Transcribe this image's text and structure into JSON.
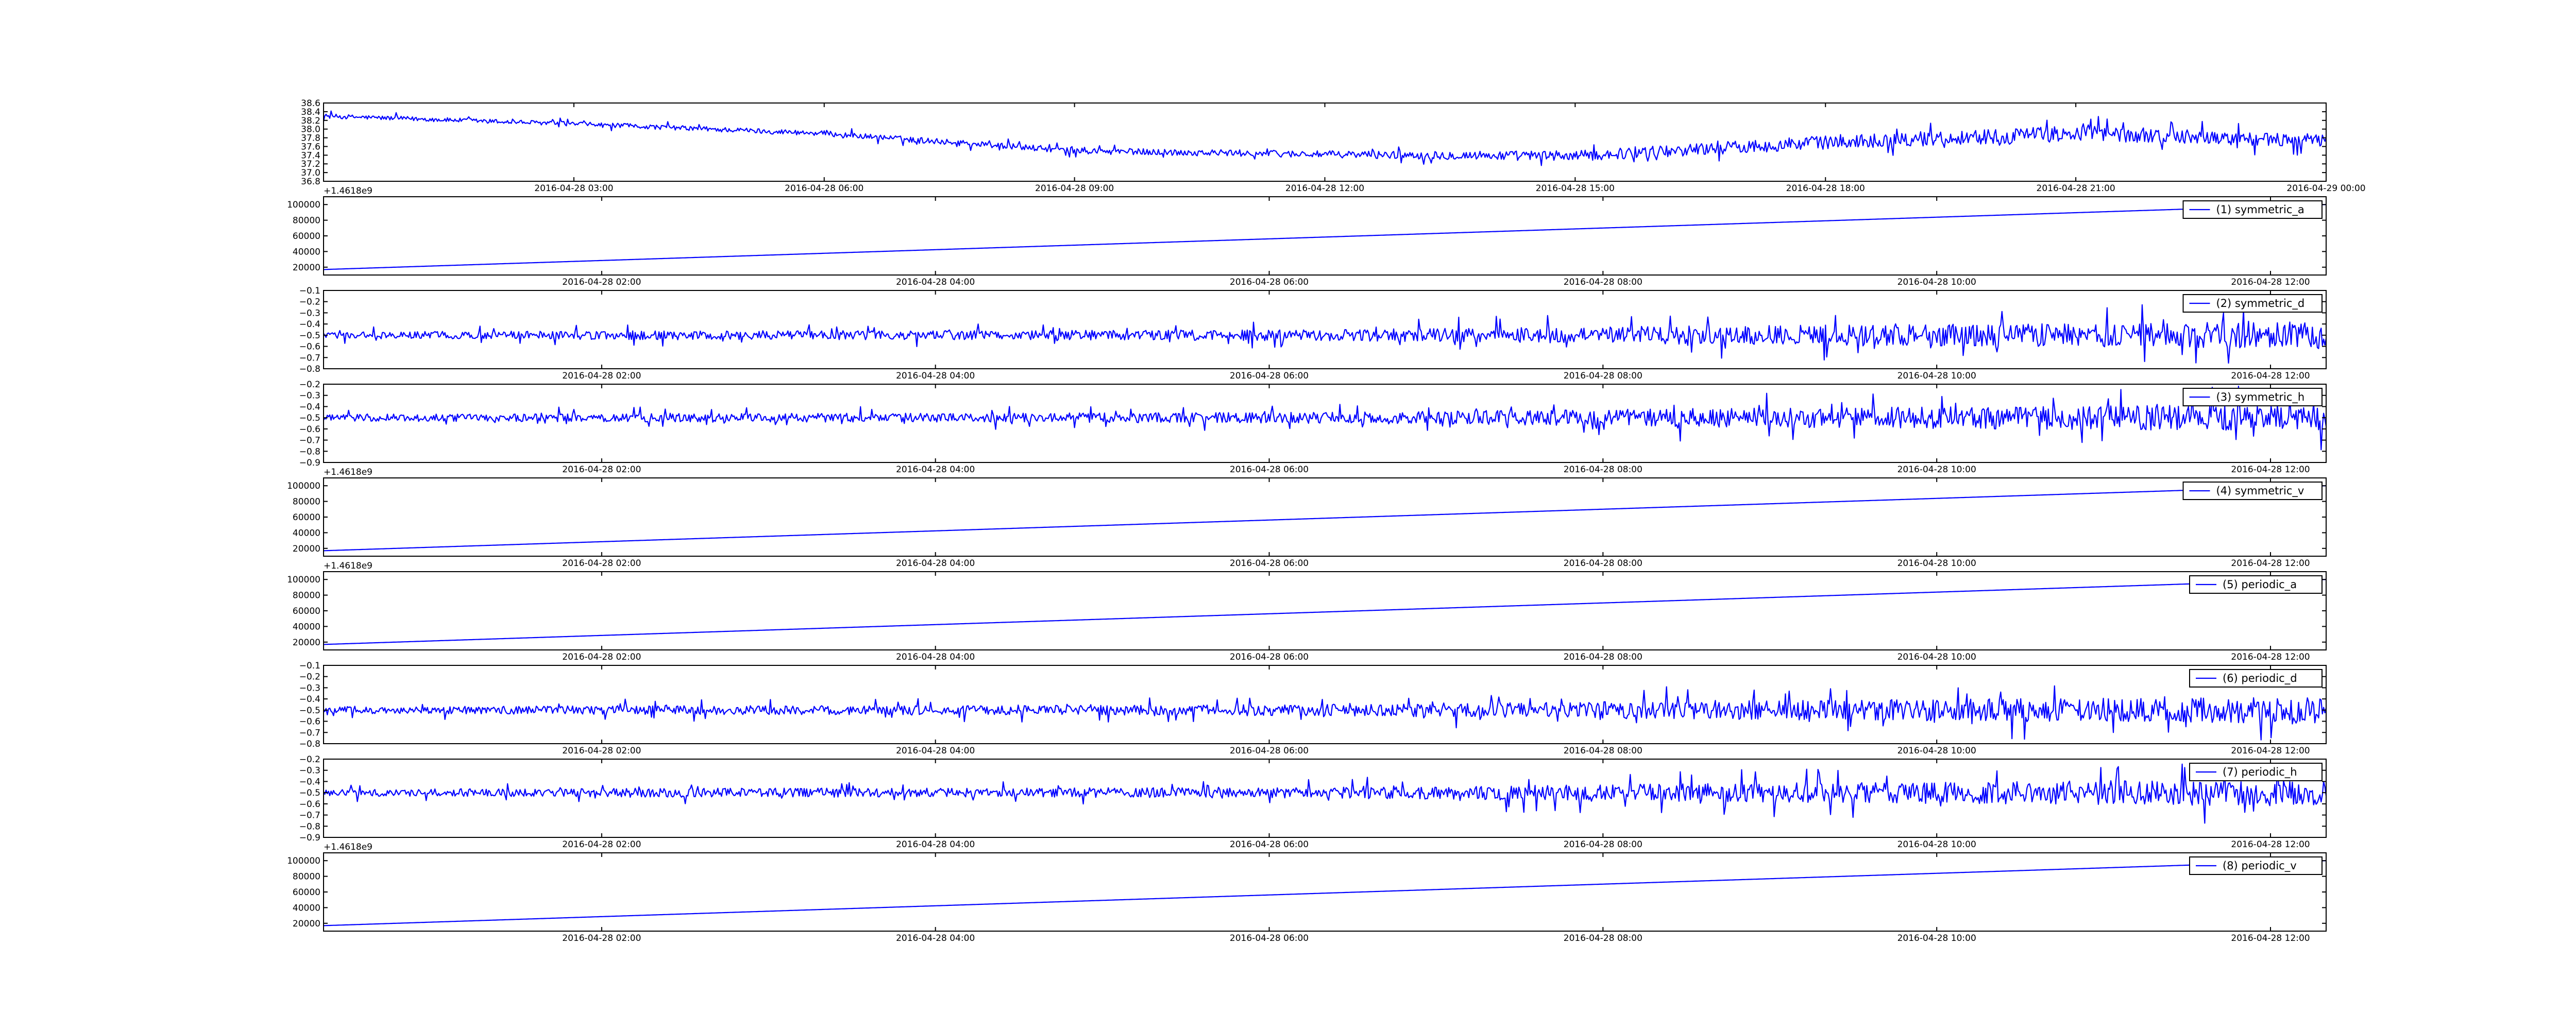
{
  "chart_data": [
    {
      "type": "line",
      "name": "",
      "x_axis_type": "datetime",
      "x_range": [
        "2016-04-28 00:00",
        "2016-04-29 00:00"
      ],
      "x_tick_labels": [
        "2016-04-28 03:00",
        "2016-04-28 06:00",
        "2016-04-28 09:00",
        "2016-04-28 12:00",
        "2016-04-28 15:00",
        "2016-04-28 18:00",
        "2016-04-28 21:00",
        "2016-04-29 00:00"
      ],
      "offset_label": "+1.4618e9",
      "ylim": [
        36.8,
        38.6
      ],
      "y_tick_labels": [
        "38.6",
        "38.4",
        "38.2",
        "38.0",
        "37.8",
        "37.6",
        "37.4",
        "37.2",
        "37.0",
        "36.8"
      ],
      "legend": "",
      "trend": {
        "x": [
          "2016-04-28 00:00",
          "2016-04-28 03:00",
          "2016-04-28 06:00",
          "2016-04-28 09:00",
          "2016-04-28 12:00",
          "2016-04-28 15:00",
          "2016-04-28 18:00",
          "2016-04-28 21:00",
          "2016-04-29 00:00"
        ],
        "y": [
          38.3,
          38.12,
          37.9,
          37.5,
          37.42,
          37.38,
          37.7,
          37.9,
          37.72
        ]
      },
      "noise_amplitude": [
        0.05,
        0.05,
        0.06,
        0.07,
        0.08,
        0.12,
        0.16,
        0.18,
        0.14
      ],
      "color": "#0000ff"
    },
    {
      "type": "line",
      "x_axis_type": "datetime",
      "x_range": [
        "2016-04-28 00:20",
        "2016-04-28 12:20"
      ],
      "x_tick_labels": [
        "2016-04-28 02:00",
        "2016-04-28 04:00",
        "2016-04-28 06:00",
        "2016-04-28 08:00",
        "2016-04-28 10:00",
        "2016-04-28 12:00"
      ],
      "offset_label": "",
      "ylim": [
        10000,
        110000
      ],
      "y_tick_labels": [
        "100000",
        "80000",
        "60000",
        "40000",
        "20000"
      ],
      "legend": "(1) symmetric_a",
      "trend": {
        "x": [
          "2016-04-28 00:20",
          "2016-04-28 12:20"
        ],
        "y": [
          17000,
          100000
        ]
      },
      "noise_amplitude": [
        0
      ],
      "color": "#0000ff"
    },
    {
      "type": "line",
      "x_axis_type": "datetime",
      "x_range": [
        "2016-04-28 00:20",
        "2016-04-28 12:20"
      ],
      "x_tick_labels": [
        "2016-04-28 02:00",
        "2016-04-28 04:00",
        "2016-04-28 06:00",
        "2016-04-28 08:00",
        "2016-04-28 10:00",
        "2016-04-28 12:00"
      ],
      "offset_label": "",
      "ylim": [
        -0.8,
        -0.1
      ],
      "y_tick_labels": [
        "−0.1",
        "−0.2",
        "−0.3",
        "−0.4",
        "−0.5",
        "−0.6",
        "−0.7",
        "−0.8"
      ],
      "legend": "(2) symmetric_d",
      "trend": {
        "x": [
          "2016-04-28 00:20",
          "2016-04-28 12:20"
        ],
        "y": [
          -0.5,
          -0.5
        ]
      },
      "noise_amplitude": [
        0.03,
        0.04,
        0.04,
        0.05,
        0.08,
        0.1,
        0.12
      ],
      "color": "#0000ff"
    },
    {
      "type": "line",
      "x_axis_type": "datetime",
      "x_range": [
        "2016-04-28 00:20",
        "2016-04-28 12:20"
      ],
      "x_tick_labels": [
        "2016-04-28 02:00",
        "2016-04-28 04:00",
        "2016-04-28 06:00",
        "2016-04-28 08:00",
        "2016-04-28 10:00",
        "2016-04-28 12:00"
      ],
      "offset_label": "+1.4618e9",
      "ylim": [
        -0.9,
        -0.2
      ],
      "y_tick_labels": [
        "−0.2",
        "−0.3",
        "−0.4",
        "−0.5",
        "−0.6",
        "−0.7",
        "−0.8",
        "−0.9"
      ],
      "legend": "(3) symmetric_h",
      "trend": {
        "x": [
          "2016-04-28 00:20",
          "2016-04-28 12:20"
        ],
        "y": [
          -0.5,
          -0.5
        ]
      },
      "noise_amplitude": [
        0.03,
        0.04,
        0.04,
        0.05,
        0.08,
        0.1,
        0.12
      ],
      "color": "#0000ff"
    },
    {
      "type": "line",
      "x_axis_type": "datetime",
      "x_range": [
        "2016-04-28 00:20",
        "2016-04-28 12:20"
      ],
      "x_tick_labels": [
        "2016-04-28 02:00",
        "2016-04-28 04:00",
        "2016-04-28 06:00",
        "2016-04-28 08:00",
        "2016-04-28 10:00",
        "2016-04-28 12:00"
      ],
      "offset_label": "+1.4618e9",
      "ylim": [
        10000,
        110000
      ],
      "y_tick_labels": [
        "100000",
        "80000",
        "60000",
        "40000",
        "20000"
      ],
      "legend": "(4) symmetric_v",
      "trend": {
        "x": [
          "2016-04-28 00:20",
          "2016-04-28 12:20"
        ],
        "y": [
          17000,
          100000
        ]
      },
      "noise_amplitude": [
        0
      ],
      "color": "#0000ff"
    },
    {
      "type": "line",
      "x_axis_type": "datetime",
      "x_range": [
        "2016-04-28 00:20",
        "2016-04-28 12:20"
      ],
      "x_tick_labels": [
        "2016-04-28 02:00",
        "2016-04-28 04:00",
        "2016-04-28 06:00",
        "2016-04-28 08:00",
        "2016-04-28 10:00",
        "2016-04-28 12:00"
      ],
      "offset_label": "",
      "ylim": [
        10000,
        110000
      ],
      "y_tick_labels": [
        "100000",
        "80000",
        "60000",
        "40000",
        "20000"
      ],
      "legend": "(5) periodic_a",
      "trend": {
        "x": [
          "2016-04-28 00:20",
          "2016-04-28 12:20"
        ],
        "y": [
          17000,
          100000
        ]
      },
      "noise_amplitude": [
        0
      ],
      "color": "#0000ff"
    },
    {
      "type": "line",
      "x_axis_type": "datetime",
      "x_range": [
        "2016-04-28 00:20",
        "2016-04-28 12:20"
      ],
      "x_tick_labels": [
        "2016-04-28 02:00",
        "2016-04-28 04:00",
        "2016-04-28 06:00",
        "2016-04-28 08:00",
        "2016-04-28 10:00",
        "2016-04-28 12:00"
      ],
      "offset_label": "",
      "ylim": [
        -0.8,
        -0.1
      ],
      "y_tick_labels": [
        "−0.1",
        "−0.2",
        "−0.3",
        "−0.4",
        "−0.5",
        "−0.6",
        "−0.7",
        "−0.8"
      ],
      "legend": "(6) periodic_d",
      "trend": {
        "x": [
          "2016-04-28 00:20",
          "2016-04-28 12:20"
        ],
        "y": [
          -0.5,
          -0.5
        ]
      },
      "noise_amplitude": [
        0.03,
        0.04,
        0.04,
        0.05,
        0.08,
        0.1,
        0.12
      ],
      "color": "#0000ff"
    },
    {
      "type": "line",
      "x_axis_type": "datetime",
      "x_range": [
        "2016-04-28 00:20",
        "2016-04-28 12:20"
      ],
      "x_tick_labels": [
        "2016-04-28 02:00",
        "2016-04-28 04:00",
        "2016-04-28 06:00",
        "2016-04-28 08:00",
        "2016-04-28 10:00",
        "2016-04-28 12:00"
      ],
      "offset_label": "+1.4618e9",
      "ylim": [
        -0.9,
        -0.2
      ],
      "y_tick_labels": [
        "−0.2",
        "−0.3",
        "−0.4",
        "−0.5",
        "−0.6",
        "−0.7",
        "−0.8",
        "−0.9"
      ],
      "legend": "(7) periodic_h",
      "trend": {
        "x": [
          "2016-04-28 00:20",
          "2016-04-28 12:20"
        ],
        "y": [
          -0.5,
          -0.5
        ]
      },
      "noise_amplitude": [
        0.03,
        0.04,
        0.04,
        0.05,
        0.08,
        0.1,
        0.12
      ],
      "color": "#0000ff"
    },
    {
      "type": "line",
      "x_axis_type": "datetime",
      "x_range": [
        "2016-04-28 00:20",
        "2016-04-28 12:20"
      ],
      "x_tick_labels": [
        "2016-04-28 02:00",
        "2016-04-28 04:00",
        "2016-04-28 06:00",
        "2016-04-28 08:00",
        "2016-04-28 10:00",
        "2016-04-28 12:00"
      ],
      "offset_label": "",
      "ylim": [
        10000,
        110000
      ],
      "y_tick_labels": [
        "100000",
        "80000",
        "60000",
        "40000",
        "20000"
      ],
      "legend": "(8) periodic_v",
      "trend": {
        "x": [
          "2016-04-28 00:20",
          "2016-04-28 12:20"
        ],
        "y": [
          17000,
          100000
        ]
      },
      "noise_amplitude": [
        0
      ],
      "color": "#0000ff"
    }
  ]
}
